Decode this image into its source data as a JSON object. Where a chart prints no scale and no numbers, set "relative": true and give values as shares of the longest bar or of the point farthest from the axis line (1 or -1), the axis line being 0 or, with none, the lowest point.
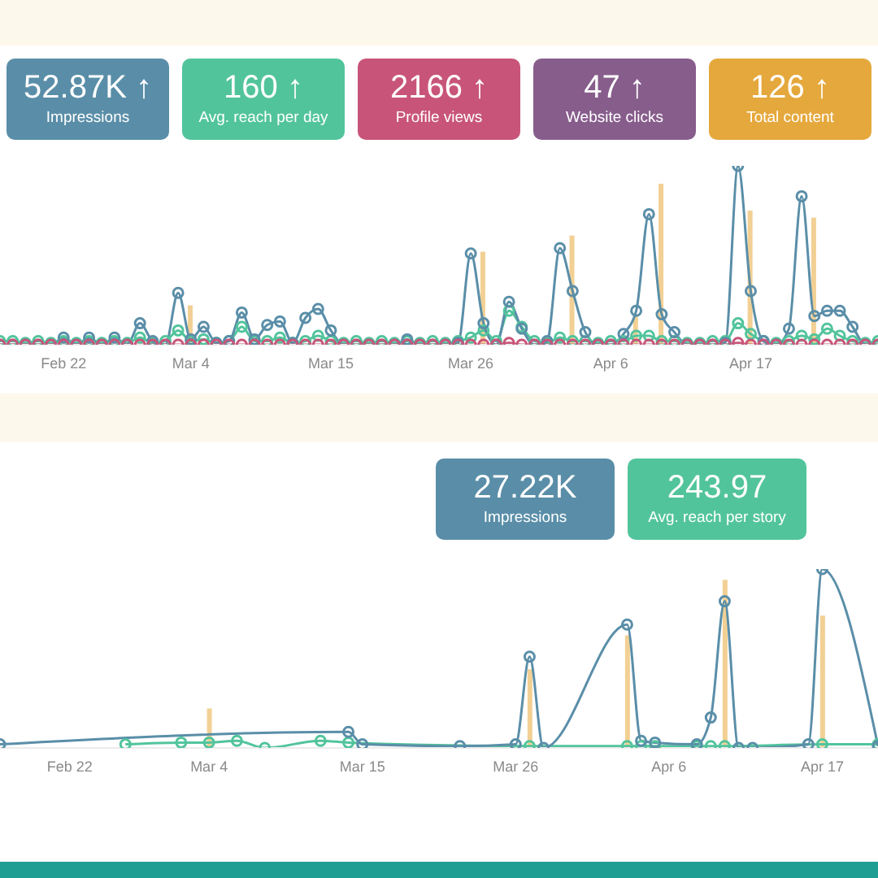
{
  "chart_data": [
    {
      "type": "other",
      "categories": [
        "Impressions",
        "Avg. reach per day",
        "Profile views",
        "Website clicks",
        "Total content"
      ],
      "value_labels": [
        "52.87K ↑",
        "160 ↑",
        "2166 ↑",
        "47 ↑",
        "126 ↑"
      ],
      "colors": [
        "#5a8ea8",
        "#52c49c",
        "#c85579",
        "#875d8c",
        "#e5a83c"
      ]
    },
    {
      "type": "line",
      "relative": true,
      "marker": "circle",
      "x": [
        "--02-17",
        "--02-18",
        "--02-19",
        "--02-20",
        "--02-21",
        "--02-22",
        "--02-23",
        "--02-24",
        "--02-25",
        "--02-26",
        "--02-27",
        "--02-28",
        "--03-01",
        "--03-02",
        "--03-03",
        "--03-04",
        "--03-05",
        "--03-06",
        "--03-07",
        "--03-08",
        "--03-09",
        "--03-10",
        "--03-11",
        "--03-12",
        "--03-13",
        "--03-14",
        "--03-15",
        "--03-16",
        "--03-17",
        "--03-18",
        "--03-19",
        "--03-20",
        "--03-21",
        "--03-22",
        "--03-23",
        "--03-24",
        "--03-25",
        "--03-26",
        "--03-27",
        "--03-28",
        "--03-29",
        "--03-30",
        "--03-31",
        "--04-01",
        "--04-02",
        "--04-03",
        "--04-04",
        "--04-05",
        "--04-06",
        "--04-07",
        "--04-08",
        "--04-09",
        "--04-10",
        "--04-11",
        "--04-12",
        "--04-13",
        "--04-14",
        "--04-15",
        "--04-16",
        "--04-17",
        "--04-18",
        "--04-19",
        "--04-20",
        "--04-21",
        "--04-22",
        "--04-23",
        "--04-24",
        "--04-25",
        "--04-26",
        "--04-27"
      ],
      "xlim": [
        "--02-17",
        "--04-27"
      ],
      "xticks": [
        {
          "value": "--02-22",
          "label": "Feb 22"
        },
        {
          "value": "--03-04",
          "label": "Mar 4"
        },
        {
          "value": "--03-15",
          "label": "Mar 15"
        },
        {
          "value": "--03-26",
          "label": "Mar 26"
        },
        {
          "value": "--04-06",
          "label": "Apr 6"
        },
        {
          "value": "--04-17",
          "label": "Apr 17"
        }
      ],
      "series": [
        {
          "type": "bar",
          "color": "#f2d094",
          "x": [
            "--03-04",
            "--03-27",
            "--04-03",
            "--04-08",
            "--04-10",
            "--04-17",
            "--04-22"
          ],
          "values": [
            0.22,
            0.52,
            0.61,
            0.17,
            0.9,
            0.75,
            0.71
          ]
        },
        {
          "color": "#52c49c",
          "values": [
            0.02,
            0.02,
            0.01,
            0.02,
            0.01,
            0.02,
            0.01,
            0.02,
            0.01,
            0.02,
            0.01,
            0.04,
            0.01,
            0.02,
            0.08,
            0.02,
            0.03,
            0.01,
            0.02,
            0.1,
            0.02,
            0.02,
            0.04,
            0.01,
            0.02,
            0.05,
            0.02,
            0.01,
            0.02,
            0.01,
            0.02,
            0.01,
            0.02,
            0.01,
            0.02,
            0.01,
            0.02,
            0.04,
            0.08,
            0.02,
            0.19,
            0.1,
            0.02,
            0.01,
            0.04,
            0.02,
            0.02,
            0.01,
            0.02,
            0.02,
            0.05,
            0.05,
            0.02,
            0.02,
            0.01,
            0.01,
            0.02,
            0.02,
            0.12,
            0.06,
            0.02,
            0.01,
            0.02,
            0.05,
            0.03,
            0.09,
            0.05,
            0.02,
            0.01,
            0.02
          ]
        },
        {
          "color": "#5a8ea8",
          "values": [
            0,
            0,
            0,
            0,
            0,
            0.04,
            0,
            0.04,
            0,
            0.04,
            0,
            0.12,
            0.02,
            0,
            0.29,
            0.03,
            0.1,
            0.01,
            0.02,
            0.18,
            0.03,
            0.11,
            0.13,
            0.01,
            0.15,
            0.2,
            0.08,
            0,
            0,
            0,
            0,
            0,
            0.03,
            0,
            0,
            0,
            0.01,
            0.51,
            0.12,
            0,
            0.24,
            0.09,
            0,
            0.02,
            0.54,
            0.3,
            0.07,
            0,
            0,
            0.06,
            0.19,
            0.73,
            0.17,
            0.07,
            0,
            0,
            0,
            0.01,
            1,
            0.3,
            0.02,
            0,
            0.09,
            0.83,
            0.16,
            0.19,
            0.19,
            0.1,
            0,
            0
          ]
        },
        {
          "color": "#c85579",
          "values": [
            0,
            0,
            0,
            0,
            0,
            0,
            0,
            0,
            0,
            0,
            0,
            0,
            0,
            0,
            0,
            0,
            0,
            0,
            0,
            0,
            0,
            0,
            0,
            0,
            0,
            0,
            0,
            0,
            0,
            0,
            0,
            0,
            0,
            0,
            0,
            0,
            0,
            0,
            0,
            0,
            0.01,
            0,
            0,
            0,
            0,
            0,
            0,
            0,
            0,
            0,
            0,
            0,
            0,
            0,
            0,
            0,
            0,
            0,
            0.01,
            0,
            0,
            0,
            0,
            0,
            0,
            0,
            0,
            0,
            0,
            0
          ]
        }
      ]
    },
    {
      "type": "other",
      "categories": [
        "Impressions",
        "Avg. reach per story"
      ],
      "value_labels": [
        "27.22K",
        "243.97"
      ],
      "colors": [
        "#5a8ea8",
        "#52c49c"
      ]
    },
    {
      "type": "line",
      "relative": true,
      "marker": "circle",
      "xlim": [
        "--02-17",
        "--04-21"
      ],
      "xticks": [
        {
          "value": "--02-22",
          "label": "Feb 22"
        },
        {
          "value": "--03-04",
          "label": "Mar 4"
        },
        {
          "value": "--03-15",
          "label": "Mar 15"
        },
        {
          "value": "--03-26",
          "label": "Mar 26"
        },
        {
          "value": "--04-06",
          "label": "Apr 6"
        },
        {
          "value": "--04-17",
          "label": "Apr 17"
        }
      ],
      "series": [
        {
          "type": "bar",
          "color": "#f2d094",
          "x": [
            "--03-04",
            "--03-27",
            "--04-03",
            "--04-10",
            "--04-17"
          ],
          "values": [
            0.22,
            0.44,
            0.63,
            0.94,
            0.74
          ]
        },
        {
          "color": "#52c49c",
          "x": [
            "--02-26",
            "--03-02",
            "--03-04",
            "--03-06",
            "--03-08",
            "--03-12",
            "--03-14",
            "--03-27",
            "--04-03",
            "--04-04",
            "--04-05",
            "--04-08",
            "--04-09",
            "--04-10",
            "--04-17",
            "--04-21"
          ],
          "values": [
            0.02,
            0.03,
            0.03,
            0.04,
            0,
            0.04,
            0.03,
            0.01,
            0.01,
            0.01,
            0.01,
            0.01,
            0.01,
            0.01,
            0.02,
            0.02
          ]
        },
        {
          "color": "#5a8ea8",
          "x": [
            "--02-17",
            "--03-14",
            "--03-15",
            "--03-22",
            "--03-26",
            "--03-27",
            "--03-28",
            "--04-03",
            "--04-04",
            "--04-05",
            "--04-08",
            "--04-09",
            "--04-10",
            "--04-11",
            "--04-12",
            "--04-16",
            "--04-17",
            "--04-21"
          ],
          "values": [
            0.02,
            0.09,
            0.02,
            0.01,
            0.02,
            0.51,
            0,
            0.69,
            0.04,
            0.03,
            0.02,
            0.17,
            0.82,
            0,
            0,
            0.02,
            1,
            0.01
          ]
        }
      ]
    }
  ]
}
